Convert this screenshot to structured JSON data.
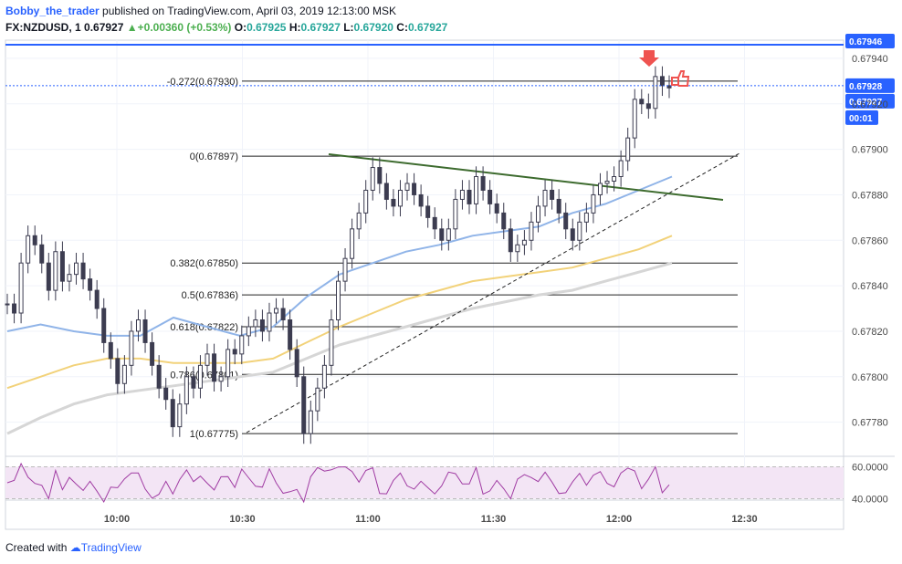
{
  "header": {
    "author": "Bobby_the_trader",
    "published": "published on TradingView.com, April 03, 2019 12:13:00 MSK",
    "symbol": "FX:NZDUSD, 1",
    "last": "0.67927",
    "arrow": "▲",
    "change": "+0.00360 (+0.53%)",
    "o_label": "O:",
    "o_value": "0.67925",
    "h_label": "H:",
    "h_value": "0.67927",
    "l_label": "L:",
    "l_value": "0.67920",
    "c_label": "C:",
    "c_value": "0.67927"
  },
  "footer": {
    "created": "Created with",
    "brand": "TradingView"
  },
  "colors": {
    "bull": "#26a69a",
    "bear": "#ef5350",
    "candle": "#3c3c50",
    "ema_fast": "#90b4e8",
    "ema_mid": "#f2d27a",
    "ema_slow": "#d6d6d6",
    "trend": "#3d6b2e",
    "price_line": "#2962ff",
    "rsi": "#a03ca3",
    "rsi_bg": "#f3e5f5"
  },
  "chart_data": {
    "type": "candlestick",
    "symbol": "FX:NZDUSD",
    "interval": "1",
    "y_axis": {
      "ticks": [
        "0.67940",
        "0.67920",
        "0.67900",
        "0.67880",
        "0.67860",
        "0.67840",
        "0.67820",
        "0.67800",
        "0.67780"
      ],
      "ylim": [
        0.67765,
        0.67948
      ]
    },
    "x_axis": {
      "ticks": [
        "10:00",
        "10:30",
        "11:00",
        "11:30",
        "12:00",
        "12:30"
      ]
    },
    "price_tags": [
      {
        "label": "0.67946",
        "value": 0.67946,
        "color": "#2962ff"
      },
      {
        "label": "0.67928",
        "value": 0.67928,
        "color": "#2962ff"
      },
      {
        "label": "0.67927",
        "value": 0.67927,
        "color": "#2962ff"
      },
      {
        "label": "00:01",
        "value": 0.67914,
        "color": "#2962ff"
      }
    ],
    "fibonacci": [
      {
        "label": "-0.272(0.67930)",
        "value": 0.6793
      },
      {
        "label": "0(0.67897)",
        "value": 0.67897
      },
      {
        "label": "0.382(0.67850)",
        "value": 0.6785
      },
      {
        "label": "0.5(0.67836)",
        "value": 0.67836
      },
      {
        "label": "0.618(0.67822)",
        "value": 0.67822
      },
      {
        "label": "0.786(0.67801)",
        "value": 0.67801
      },
      {
        "label": "1(0.67775)",
        "value": 0.67775
      }
    ],
    "candles_close": [
      0.67832,
      0.67828,
      0.6785,
      0.67862,
      0.67858,
      0.6785,
      0.67838,
      0.67855,
      0.67842,
      0.67845,
      0.6785,
      0.67843,
      0.67838,
      0.6783,
      0.67815,
      0.67808,
      0.67797,
      0.67805,
      0.6782,
      0.67825,
      0.67815,
      0.67805,
      0.67795,
      0.6779,
      0.67778,
      0.67788,
      0.678,
      0.67795,
      0.67805,
      0.6781,
      0.67798,
      0.678,
      0.67812,
      0.6781,
      0.67818,
      0.67822,
      0.67825,
      0.6782,
      0.67828,
      0.6783,
      0.67825,
      0.67812,
      0.678,
      0.67775,
      0.67785,
      0.67795,
      0.67805,
      0.67825,
      0.67842,
      0.67852,
      0.67865,
      0.67872,
      0.67882,
      0.67892,
      0.67885,
      0.67878,
      0.67875,
      0.67882,
      0.67885,
      0.6788,
      0.67875,
      0.6787,
      0.67865,
      0.6786,
      0.67865,
      0.67878,
      0.67882,
      0.67876,
      0.67888,
      0.67882,
      0.67876,
      0.67872,
      0.67865,
      0.67855,
      0.67858,
      0.6786,
      0.67868,
      0.67875,
      0.67882,
      0.67878,
      0.67872,
      0.67865,
      0.6786,
      0.67868,
      0.67872,
      0.6788,
      0.67885,
      0.67886,
      0.67888,
      0.67895,
      0.67905,
      0.67922,
      0.6792,
      0.67918,
      0.67932,
      0.67928,
      0.67927
    ],
    "ema_fast": [
      [
        0,
        0.6782
      ],
      [
        20,
        0.67823
      ],
      [
        40,
        0.6782
      ],
      [
        60,
        0.67818
      ],
      [
        80,
        0.67818
      ],
      [
        100,
        0.67826
      ],
      [
        120,
        0.67822
      ],
      [
        140,
        0.67818
      ],
      [
        160,
        0.67822
      ],
      [
        180,
        0.67835
      ],
      [
        200,
        0.67845
      ],
      [
        220,
        0.6785
      ],
      [
        240,
        0.67855
      ],
      [
        260,
        0.67858
      ],
      [
        280,
        0.67862
      ],
      [
        300,
        0.67864
      ],
      [
        320,
        0.67866
      ],
      [
        340,
        0.67872
      ],
      [
        360,
        0.67876
      ],
      [
        380,
        0.67882
      ],
      [
        400,
        0.67888
      ]
    ],
    "ema_mid": [
      [
        0,
        0.67795
      ],
      [
        20,
        0.678
      ],
      [
        40,
        0.67805
      ],
      [
        60,
        0.67808
      ],
      [
        80,
        0.67808
      ],
      [
        100,
        0.67806
      ],
      [
        120,
        0.67806
      ],
      [
        140,
        0.67806
      ],
      [
        160,
        0.67808
      ],
      [
        180,
        0.67815
      ],
      [
        200,
        0.67822
      ],
      [
        220,
        0.67828
      ],
      [
        240,
        0.67834
      ],
      [
        260,
        0.67838
      ],
      [
        280,
        0.67842
      ],
      [
        300,
        0.67844
      ],
      [
        320,
        0.67846
      ],
      [
        340,
        0.67848
      ],
      [
        360,
        0.67852
      ],
      [
        380,
        0.67856
      ],
      [
        400,
        0.67862
      ]
    ],
    "ema_slow": [
      [
        0,
        0.67775
      ],
      [
        20,
        0.67782
      ],
      [
        40,
        0.67788
      ],
      [
        60,
        0.67792
      ],
      [
        80,
        0.67794
      ],
      [
        100,
        0.67796
      ],
      [
        120,
        0.67798
      ],
      [
        140,
        0.678
      ],
      [
        160,
        0.67802
      ],
      [
        180,
        0.67808
      ],
      [
        200,
        0.67814
      ],
      [
        220,
        0.67818
      ],
      [
        240,
        0.67822
      ],
      [
        260,
        0.67826
      ],
      [
        280,
        0.6783
      ],
      [
        300,
        0.67833
      ],
      [
        320,
        0.67836
      ],
      [
        340,
        0.67838
      ],
      [
        360,
        0.67842
      ],
      [
        380,
        0.67846
      ],
      [
        400,
        0.6785
      ]
    ],
    "rsi": {
      "ticks": [
        "60.0000",
        "40.0000"
      ],
      "levels": [
        60,
        40
      ]
    }
  }
}
